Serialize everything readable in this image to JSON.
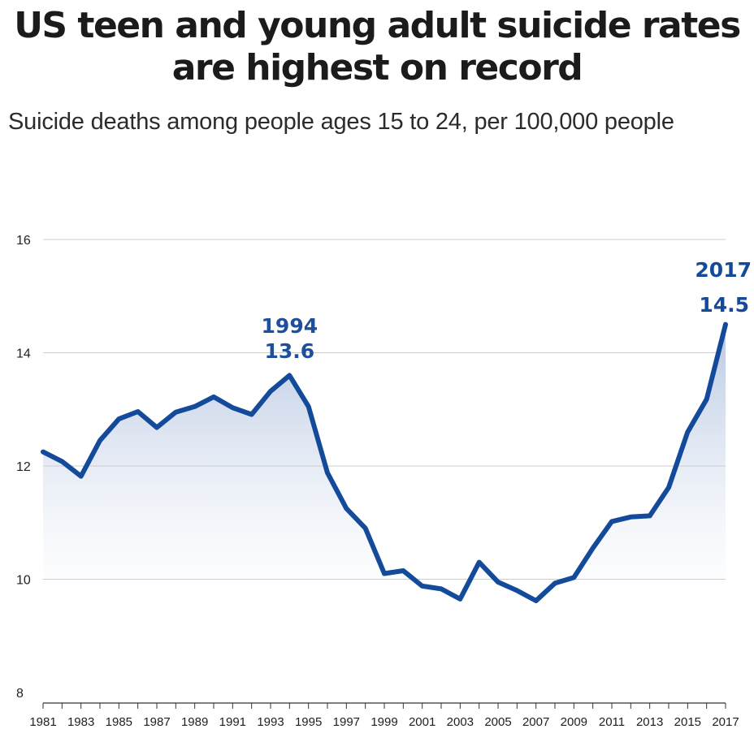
{
  "title_line1": "US teen and young adult suicide rates",
  "title_line2": "are highest on record",
  "subtitle": "Suicide deaths among people ages 15 to 24, per 100,000 people",
  "colors": {
    "line": "#134a99",
    "fill_top": "#b7c7e2",
    "fill_bottom": "#ffffff",
    "grid": "#cccccc",
    "annotation": "#1e4f9c"
  },
  "chart_data": {
    "type": "line",
    "title": "US teen and young adult suicide rates are highest on record",
    "subtitle": "Suicide deaths among people ages 15 to 24, per 100,000 people",
    "xlabel": "",
    "ylabel": "",
    "ylim": [
      8,
      16
    ],
    "yticks": [
      8,
      10,
      12,
      14,
      16
    ],
    "xlim": [
      1981,
      2017
    ],
    "xtick_labels": [
      "1981",
      "1983",
      "1985",
      "1987",
      "1989",
      "1991",
      "1993",
      "1995",
      "1997",
      "1999",
      "2001",
      "2003",
      "2005",
      "2007",
      "2009",
      "2011",
      "2013",
      "2015",
      "2017"
    ],
    "grid": true,
    "fill_under_line": true,
    "x": [
      1981,
      1982,
      1983,
      1984,
      1985,
      1986,
      1987,
      1988,
      1989,
      1990,
      1991,
      1992,
      1993,
      1994,
      1995,
      1996,
      1997,
      1998,
      1999,
      2000,
      2001,
      2002,
      2003,
      2004,
      2005,
      2006,
      2007,
      2008,
      2009,
      2010,
      2011,
      2012,
      2013,
      2014,
      2015,
      2016,
      2017
    ],
    "series": [
      {
        "values": [
          12.25,
          12.08,
          11.82,
          12.45,
          12.83,
          12.96,
          12.68,
          12.95,
          13.05,
          13.22,
          13.03,
          12.91,
          13.32,
          13.6,
          13.05,
          11.88,
          11.25,
          10.9,
          10.1,
          10.15,
          9.88,
          9.83,
          9.65,
          10.3,
          9.95,
          9.8,
          9.62,
          9.93,
          10.03,
          10.55,
          11.02,
          11.1,
          11.12,
          11.62,
          12.6,
          13.18,
          14.5
        ]
      }
    ],
    "annotations": [
      {
        "year_label": "1994",
        "value_label": "13.6",
        "x": 1994,
        "y": 13.6
      },
      {
        "year_label": "2017",
        "value_label": "14.5",
        "x": 2017,
        "y": 14.5
      }
    ]
  }
}
